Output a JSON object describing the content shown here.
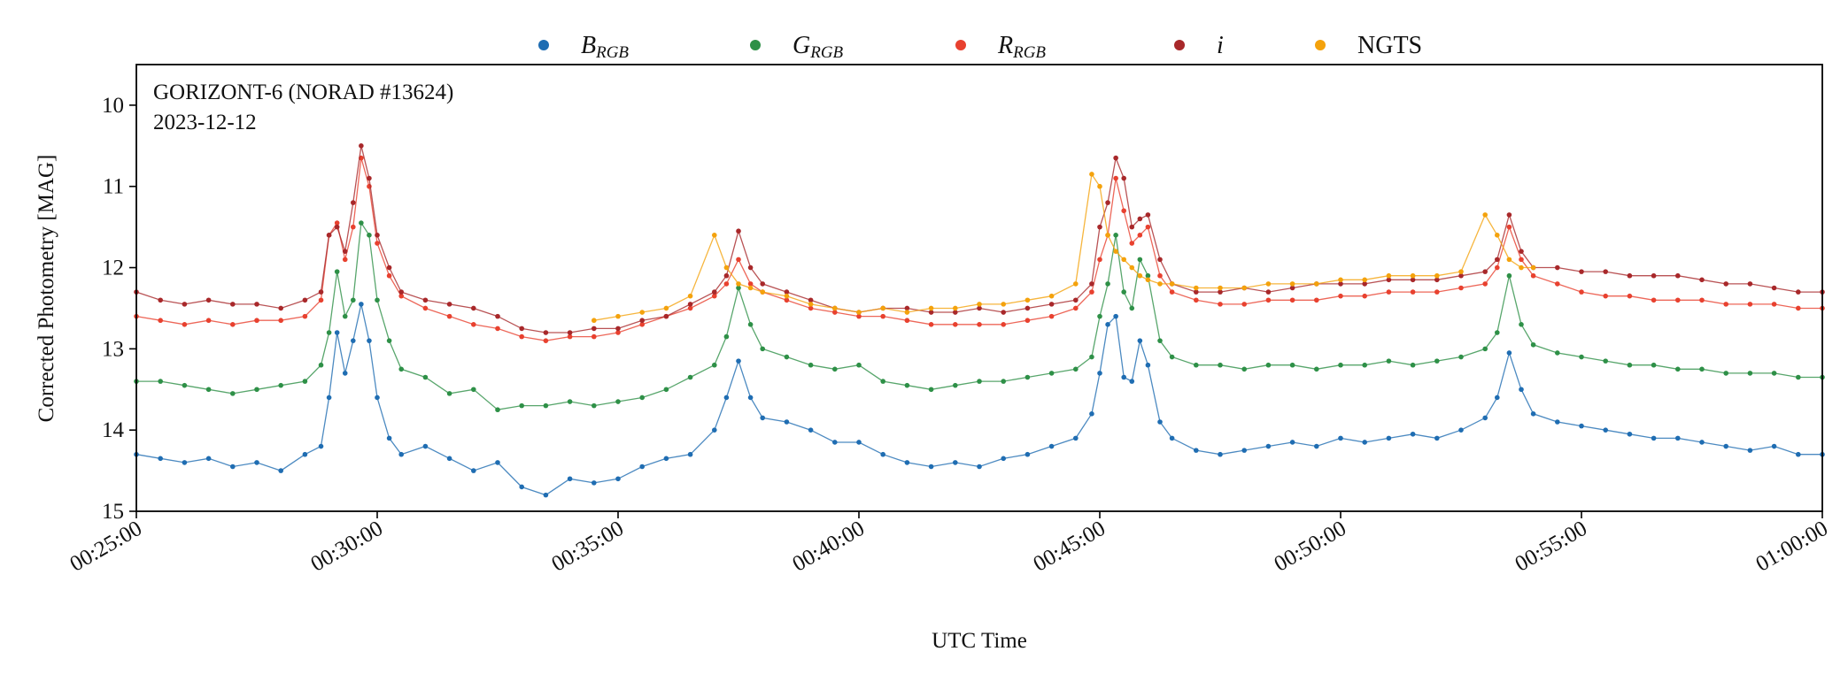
{
  "chart_data": {
    "type": "line",
    "annotation": [
      "GORIZONT-6 (NORAD #13624)",
      "2023-12-12"
    ],
    "xlabel": "UTC Time",
    "ylabel": "Corrected Photometry [MAG]",
    "xlim": [
      "00:25:00",
      "01:00:00"
    ],
    "xticks": [
      "00:25:00",
      "00:30:00",
      "00:35:00",
      "00:40:00",
      "00:45:00",
      "00:50:00",
      "00:55:00",
      "01:00:00"
    ],
    "ylim": [
      9.5,
      15
    ],
    "y_inverted": true,
    "yticks": [
      10,
      11,
      12,
      13,
      14,
      15
    ],
    "legend": "top",
    "x": [
      "00:25:00",
      "00:25:30",
      "00:26:00",
      "00:26:30",
      "00:27:00",
      "00:27:30",
      "00:28:00",
      "00:28:30",
      "00:28:50",
      "00:29:00",
      "00:29:10",
      "00:29:20",
      "00:29:30",
      "00:29:40",
      "00:29:50",
      "00:30:00",
      "00:30:15",
      "00:30:30",
      "00:31:00",
      "00:31:30",
      "00:32:00",
      "00:32:30",
      "00:33:00",
      "00:33:30",
      "00:34:00",
      "00:34:30",
      "00:35:00",
      "00:35:30",
      "00:36:00",
      "00:36:30",
      "00:37:00",
      "00:37:15",
      "00:37:30",
      "00:37:45",
      "00:38:00",
      "00:38:30",
      "00:39:00",
      "00:39:30",
      "00:40:00",
      "00:40:30",
      "00:41:00",
      "00:41:30",
      "00:42:00",
      "00:42:30",
      "00:43:00",
      "00:43:30",
      "00:44:00",
      "00:44:30",
      "00:44:50",
      "00:45:00",
      "00:45:10",
      "00:45:20",
      "00:45:30",
      "00:45:40",
      "00:45:50",
      "00:46:00",
      "00:46:15",
      "00:46:30",
      "00:47:00",
      "00:47:30",
      "00:48:00",
      "00:48:30",
      "00:49:00",
      "00:49:30",
      "00:50:00",
      "00:50:30",
      "00:51:00",
      "00:51:30",
      "00:52:00",
      "00:52:30",
      "00:53:00",
      "00:53:15",
      "00:53:30",
      "00:53:45",
      "00:54:00",
      "00:54:30",
      "00:55:00",
      "00:55:30",
      "00:56:00",
      "00:56:30",
      "00:57:00",
      "00:57:30",
      "00:58:00",
      "00:58:30",
      "00:59:00",
      "00:59:30",
      "01:00:00"
    ],
    "series": [
      {
        "name": "B",
        "name_subscript": "RGB",
        "name_style": "italic",
        "color": "#1f6db2",
        "values": [
          14.3,
          14.35,
          14.4,
          14.35,
          14.45,
          14.4,
          14.5,
          14.3,
          14.2,
          13.6,
          12.8,
          13.3,
          12.9,
          12.45,
          12.9,
          13.6,
          14.1,
          14.3,
          14.2,
          14.35,
          14.5,
          14.4,
          14.7,
          14.8,
          14.6,
          14.65,
          14.6,
          14.45,
          14.35,
          14.3,
          14.0,
          13.6,
          13.15,
          13.6,
          13.85,
          13.9,
          14.0,
          14.15,
          14.15,
          14.3,
          14.4,
          14.45,
          14.4,
          14.45,
          14.35,
          14.3,
          14.2,
          14.1,
          13.8,
          13.3,
          12.7,
          12.6,
          13.35,
          13.4,
          12.9,
          13.2,
          13.9,
          14.1,
          14.25,
          14.3,
          14.25,
          14.2,
          14.15,
          14.2,
          14.1,
          14.15,
          14.1,
          14.05,
          14.1,
          14.0,
          13.85,
          13.6,
          13.05,
          13.5,
          13.8,
          13.9,
          13.95,
          14.0,
          14.05,
          14.1,
          14.1,
          14.15,
          14.2,
          14.25,
          14.2,
          14.3,
          14.3
        ]
      },
      {
        "name": "G",
        "name_subscript": "RGB",
        "name_style": "italic",
        "color": "#2e9047",
        "values": [
          13.4,
          13.4,
          13.45,
          13.5,
          13.55,
          13.5,
          13.45,
          13.4,
          13.2,
          12.8,
          12.05,
          12.6,
          12.4,
          11.45,
          11.6,
          12.4,
          12.9,
          13.25,
          13.35,
          13.55,
          13.5,
          13.75,
          13.7,
          13.7,
          13.65,
          13.7,
          13.65,
          13.6,
          13.5,
          13.35,
          13.2,
          12.85,
          12.25,
          12.7,
          13.0,
          13.1,
          13.2,
          13.25,
          13.2,
          13.4,
          13.45,
          13.5,
          13.45,
          13.4,
          13.4,
          13.35,
          13.3,
          13.25,
          13.1,
          12.6,
          12.2,
          11.6,
          12.3,
          12.5,
          11.9,
          12.1,
          12.9,
          13.1,
          13.2,
          13.2,
          13.25,
          13.2,
          13.2,
          13.25,
          13.2,
          13.2,
          13.15,
          13.2,
          13.15,
          13.1,
          13.0,
          12.8,
          12.1,
          12.7,
          12.95,
          13.05,
          13.1,
          13.15,
          13.2,
          13.2,
          13.25,
          13.25,
          13.3,
          13.3,
          13.3,
          13.35,
          13.35
        ]
      },
      {
        "name": "R",
        "name_subscript": "RGB",
        "name_style": "italic",
        "color": "#e8412f",
        "values": [
          12.6,
          12.65,
          12.7,
          12.65,
          12.7,
          12.65,
          12.65,
          12.6,
          12.4,
          11.6,
          11.45,
          11.9,
          11.5,
          10.65,
          11.0,
          11.7,
          12.1,
          12.35,
          12.5,
          12.6,
          12.7,
          12.75,
          12.85,
          12.9,
          12.85,
          12.85,
          12.8,
          12.7,
          12.6,
          12.5,
          12.35,
          12.2,
          11.9,
          12.2,
          12.3,
          12.4,
          12.5,
          12.55,
          12.6,
          12.6,
          12.65,
          12.7,
          12.7,
          12.7,
          12.7,
          12.65,
          12.6,
          12.5,
          12.3,
          11.9,
          11.6,
          10.9,
          11.3,
          11.7,
          11.6,
          11.5,
          12.1,
          12.3,
          12.4,
          12.45,
          12.45,
          12.4,
          12.4,
          12.4,
          12.35,
          12.35,
          12.3,
          12.3,
          12.3,
          12.25,
          12.2,
          12.0,
          11.5,
          11.9,
          12.1,
          12.2,
          12.3,
          12.35,
          12.35,
          12.4,
          12.4,
          12.4,
          12.45,
          12.45,
          12.45,
          12.5,
          12.5
        ]
      },
      {
        "name": "i",
        "name_style": "italic",
        "color": "#a8282a",
        "values": [
          12.3,
          12.4,
          12.45,
          12.4,
          12.45,
          12.45,
          12.5,
          12.4,
          12.3,
          11.6,
          11.5,
          11.8,
          11.2,
          10.5,
          10.9,
          11.6,
          12.0,
          12.3,
          12.4,
          12.45,
          12.5,
          12.6,
          12.75,
          12.8,
          12.8,
          12.75,
          12.75,
          12.65,
          12.6,
          12.45,
          12.3,
          12.1,
          11.55,
          12.0,
          12.2,
          12.3,
          12.4,
          12.5,
          12.55,
          12.5,
          12.5,
          12.55,
          12.55,
          12.5,
          12.55,
          12.5,
          12.45,
          12.4,
          12.2,
          11.5,
          11.2,
          10.65,
          10.9,
          11.5,
          11.4,
          11.35,
          11.9,
          12.2,
          12.3,
          12.3,
          12.25,
          12.3,
          12.25,
          12.2,
          12.2,
          12.2,
          12.15,
          12.15,
          12.15,
          12.1,
          12.05,
          11.9,
          11.35,
          11.8,
          12.0,
          12.0,
          12.05,
          12.05,
          12.1,
          12.1,
          12.1,
          12.15,
          12.2,
          12.2,
          12.25,
          12.3,
          12.3
        ]
      },
      {
        "name": "NGTS",
        "name_style": "normal",
        "color": "#f4a20c",
        "values": [
          null,
          null,
          null,
          null,
          null,
          null,
          null,
          null,
          null,
          null,
          null,
          null,
          null,
          null,
          null,
          null,
          null,
          null,
          null,
          null,
          null,
          null,
          null,
          null,
          null,
          12.65,
          12.6,
          12.55,
          12.5,
          12.35,
          11.6,
          12.0,
          12.2,
          12.25,
          12.3,
          12.35,
          12.45,
          12.5,
          12.55,
          12.5,
          12.55,
          12.5,
          12.5,
          12.45,
          12.45,
          12.4,
          12.35,
          12.2,
          10.85,
          11.0,
          11.6,
          11.8,
          11.9,
          12.0,
          12.1,
          12.15,
          12.2,
          12.2,
          12.25,
          12.25,
          12.25,
          12.2,
          12.2,
          12.2,
          12.15,
          12.15,
          12.1,
          12.1,
          12.1,
          12.05,
          11.35,
          11.6,
          11.9,
          12.0,
          12.0,
          null,
          null,
          null,
          null,
          null,
          null,
          null,
          null,
          null,
          null,
          null,
          null
        ]
      }
    ]
  }
}
